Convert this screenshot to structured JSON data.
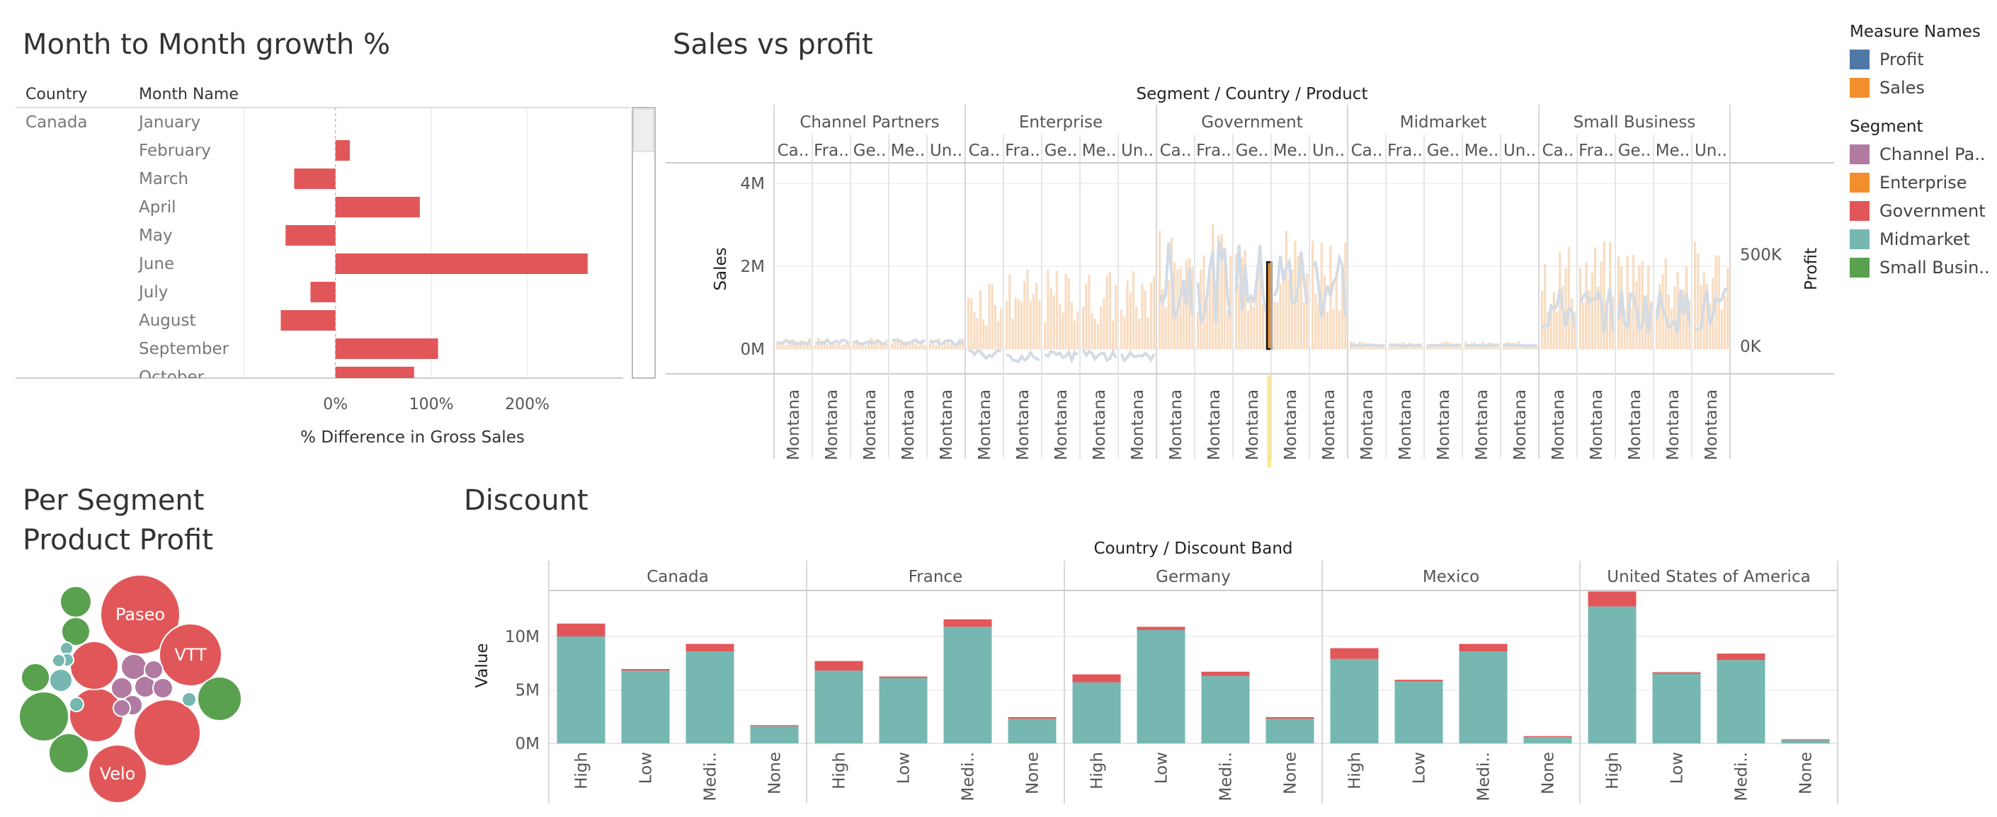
{
  "dashboard": {
    "month_title": "Month to Month growth %",
    "sales_title": "Sales vs profit",
    "segment_title_line1": "Per Segment",
    "segment_title_line2": "Product Profit",
    "discount_title": "Discount"
  },
  "legend": {
    "measure_header": "Measure Names",
    "measures": [
      {
        "label": "Profit",
        "color": "#4e79a7"
      },
      {
        "label": "Sales",
        "color": "#f28e2b"
      }
    ],
    "segment_header": "Segment",
    "segments": [
      {
        "label": "Channel Pa..",
        "color": "#b07aa1"
      },
      {
        "label": "Enterprise",
        "color": "#f28e2b"
      },
      {
        "label": "Government",
        "color": "#e15759"
      },
      {
        "label": "Midmarket",
        "color": "#76b7b2"
      },
      {
        "label": "Small Busin..",
        "color": "#59a14f"
      }
    ]
  },
  "chart_data": [
    {
      "id": "month-growth",
      "type": "bar",
      "orientation": "horizontal",
      "row_header_country": "Country",
      "row_header_month": "Month Name",
      "country": "Canada",
      "categories": [
        "January",
        "February",
        "March",
        "April",
        "May",
        "June",
        "July",
        "August",
        "September",
        "October"
      ],
      "values": [
        null,
        15,
        -43,
        88,
        -52,
        263,
        -26,
        -57,
        107,
        82
      ],
      "xlabel": "% Difference in Gross Sales",
      "xticks": [
        "0%",
        "100%",
        "200%"
      ],
      "xtick_values": [
        0,
        100,
        200
      ],
      "xlim": [
        -95,
        300
      ],
      "color": "#e15759"
    },
    {
      "id": "sales-vs-profit",
      "type": "bar+line",
      "header": "Segment / Country / Product",
      "segments": [
        "Channel Partners",
        "Enterprise",
        "Government",
        "Midmarket",
        "Small Business"
      ],
      "countries": [
        "Ca..",
        "Fra..",
        "Ge..",
        "Me..",
        "Un.."
      ],
      "product": "Montana",
      "ylabel_left": "Sales",
      "ylabel_right": "Profit",
      "yticks_left": [
        "4M",
        "2M",
        "0M"
      ],
      "ytick_values_left": [
        4000000,
        2000000,
        0
      ],
      "yticks_right": [
        "500K",
        "0K"
      ],
      "ytick_values_right": [
        500000,
        0
      ],
      "ylim_sales": [
        -600000,
        4500000
      ],
      "ylim_profit": [
        -150000,
        1000000
      ],
      "sales_color": "#f8dcc0",
      "profit_color": "#d3dbe5",
      "sales_level_by_segment": [
        0.18,
        1.25,
        2.0,
        0.12,
        1.7
      ],
      "profit_level_by_segment": [
        20000,
        -40000,
        320000,
        5000,
        180000
      ],
      "highlight": {
        "segment": "Government",
        "country": "Ge..",
        "month_index": 11
      }
    },
    {
      "id": "segment-profit",
      "type": "bubble",
      "bubbles": [
        {
          "label": "Paseo",
          "segment": "Government",
          "r": 56
        },
        {
          "label": "VTT",
          "segment": "Government",
          "r": 44
        },
        {
          "label": "Velo",
          "segment": "Government",
          "r": 41
        },
        {
          "label": "",
          "segment": "Government",
          "r": 47
        },
        {
          "label": "",
          "segment": "Government",
          "r": 38
        },
        {
          "label": "",
          "segment": "Government",
          "r": 34
        },
        {
          "label": "",
          "segment": "Small Business",
          "r": 35
        },
        {
          "label": "",
          "segment": "Small Business",
          "r": 31
        },
        {
          "label": "",
          "segment": "Small Business",
          "r": 28
        },
        {
          "label": "",
          "segment": "Small Business",
          "r": 22
        },
        {
          "label": "",
          "segment": "Small Business",
          "r": 20
        },
        {
          "label": "",
          "segment": "Small Business",
          "r": 20
        },
        {
          "label": "",
          "segment": "Channel Partners",
          "r": 18
        },
        {
          "label": "",
          "segment": "Channel Partners",
          "r": 15
        },
        {
          "label": "",
          "segment": "Channel Partners",
          "r": 15
        },
        {
          "label": "",
          "segment": "Channel Partners",
          "r": 14
        },
        {
          "label": "",
          "segment": "Channel Partners",
          "r": 14
        },
        {
          "label": "",
          "segment": "Channel Partners",
          "r": 13
        },
        {
          "label": "",
          "segment": "Channel Partners",
          "r": 12
        },
        {
          "label": "",
          "segment": "Midmarket",
          "r": 16
        },
        {
          "label": "",
          "segment": "Midmarket",
          "r": 10
        },
        {
          "label": "",
          "segment": "Midmarket",
          "r": 10
        },
        {
          "label": "",
          "segment": "Midmarket",
          "r": 9
        },
        {
          "label": "",
          "segment": "Midmarket",
          "r": 9
        },
        {
          "label": "",
          "segment": "Midmarket",
          "r": 9
        }
      ]
    },
    {
      "id": "discount",
      "type": "stacked-bar",
      "header": "Country / Discount Band",
      "countries": [
        "Canada",
        "France",
        "Germany",
        "Mexico",
        "United States of America"
      ],
      "bands": [
        "High",
        "Low",
        "Medi..",
        "None"
      ],
      "ylabel": "Value",
      "yticks": [
        "10M",
        "5M",
        "0M"
      ],
      "ytick_values": [
        10000000,
        5000000,
        0
      ],
      "ylim": [
        0,
        14300000
      ],
      "sales_color": "#76b7b2",
      "profit_color": "#e15759",
      "sales": [
        [
          10000000,
          6800000,
          8600000,
          1600000
        ],
        [
          6800000,
          6100000,
          10900000,
          2300000
        ],
        [
          5700000,
          10600000,
          6300000,
          2300000
        ],
        [
          7900000,
          5800000,
          8600000,
          600000
        ],
        [
          12800000,
          6500000,
          7800000,
          300000
        ]
      ],
      "profit": [
        [
          1200000,
          150000,
          700000,
          100000
        ],
        [
          900000,
          150000,
          700000,
          150000
        ],
        [
          750000,
          300000,
          400000,
          150000
        ],
        [
          1000000,
          150000,
          700000,
          80000
        ],
        [
          1400000,
          150000,
          600000,
          80000
        ]
      ]
    }
  ]
}
